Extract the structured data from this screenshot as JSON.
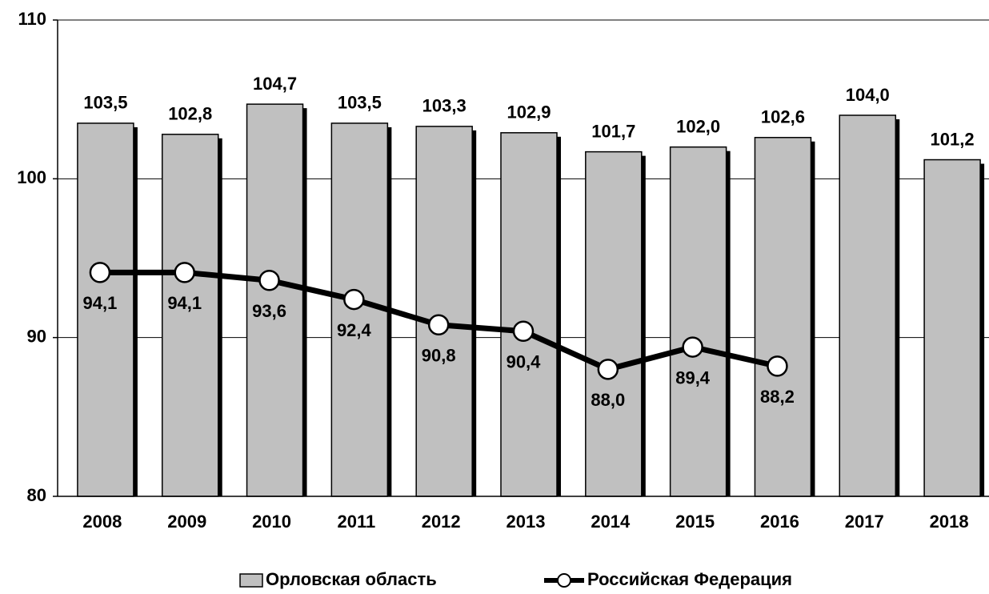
{
  "chart_data": {
    "type": "bar",
    "categories": [
      "2008",
      "2009",
      "2010",
      "2011",
      "2012",
      "2013",
      "2014",
      "2015",
      "2016",
      "2017",
      "2018"
    ],
    "series": [
      {
        "name": "Орловская область",
        "type": "bar",
        "color": "#c0c0c0",
        "values": [
          103.5,
          102.8,
          104.7,
          103.5,
          103.3,
          102.9,
          101.7,
          102.0,
          102.6,
          104.0,
          101.2
        ],
        "value_labels": [
          "103,5",
          "102,8",
          "104,7",
          "103,5",
          "103,3",
          "102,9",
          "101,7",
          "102,0",
          "102,6",
          "104,0",
          "101,2"
        ]
      },
      {
        "name": "Российская Федерация",
        "type": "line",
        "color": "#000000",
        "values": [
          94.1,
          94.1,
          93.6,
          92.4,
          90.8,
          90.4,
          88.0,
          89.4,
          88.2,
          null,
          null
        ],
        "value_labels": [
          "94,1",
          "94,1",
          "93,6",
          "92,4",
          "90,8",
          "90,4",
          "88,0",
          "89,4",
          "88,2",
          null,
          null
        ]
      }
    ],
    "ylim": [
      80,
      110
    ],
    "yticks": [
      80,
      90,
      100,
      110
    ],
    "grid": true,
    "legend": "bottom"
  }
}
